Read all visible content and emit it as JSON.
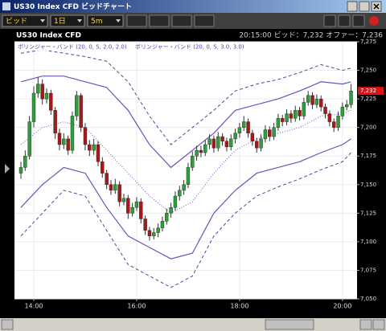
{
  "window": {
    "title": "US30 Index CFD ビッドチャート"
  },
  "toolbar": {
    "price_type": "ビッド",
    "period": "1日",
    "interval": "5m"
  },
  "chart_data": {
    "type": "candlestick",
    "title": "US30 Index CFD",
    "info": "20:15:00  ビッド：7,232  オファー：7,236",
    "legend": [
      "ボリンジャー・バンド (20, 0, S, 2.0, 2.0)",
      "ボリンジャー・バンド (20, 0, S, 3.0, 3.0)"
    ],
    "xlim": [
      -1.5,
      78.4
    ],
    "xticks": [
      {
        "value": 3,
        "label": "14:00"
      },
      {
        "value": 27,
        "label": "16:00"
      },
      {
        "value": 51,
        "label": "18:00"
      },
      {
        "value": 75,
        "label": "20:00"
      }
    ],
    "ylim": [
      7050,
      7275
    ],
    "yticks": [
      {
        "value": 7050,
        "label": "7,050"
      },
      {
        "value": 7075,
        "label": "7,075"
      },
      {
        "value": 7100,
        "label": "7,100"
      },
      {
        "value": 7125,
        "label": "7,125"
      },
      {
        "value": 7150,
        "label": "7,150"
      },
      {
        "value": 7175,
        "label": "7,175"
      },
      {
        "value": 7200,
        "label": "7,200"
      },
      {
        "value": 7225,
        "label": "7,225"
      },
      {
        "value": 7250,
        "label": "7,250"
      },
      {
        "value": 7275,
        "label": "7,275"
      }
    ],
    "grid": true,
    "up_color": "#2e9e3a",
    "down_color": "#a81818",
    "ohlc": [
      [
        7160,
        7170,
        7155,
        7165
      ],
      [
        7165,
        7180,
        7162,
        7175
      ],
      [
        7175,
        7210,
        7172,
        7205
      ],
      [
        7205,
        7236,
        7200,
        7230
      ],
      [
        7230,
        7244,
        7226,
        7238
      ],
      [
        7238,
        7242,
        7220,
        7225
      ],
      [
        7225,
        7234,
        7221,
        7230
      ],
      [
        7230,
        7233,
        7211,
        7215
      ],
      [
        7215,
        7218,
        7190,
        7195
      ],
      [
        7195,
        7199,
        7180,
        7185
      ],
      [
        7185,
        7195,
        7181,
        7190
      ],
      [
        7190,
        7193,
        7176,
        7180
      ],
      [
        7180,
        7214,
        7177,
        7210
      ],
      [
        7210,
        7232,
        7206,
        7228
      ],
      [
        7228,
        7230,
        7196,
        7200
      ],
      [
        7200,
        7204,
        7180,
        7185
      ],
      [
        7185,
        7189,
        7175,
        7180
      ],
      [
        7180,
        7190,
        7176,
        7185
      ],
      [
        7185,
        7188,
        7166,
        7170
      ],
      [
        7170,
        7174,
        7156,
        7160
      ],
      [
        7160,
        7163,
        7146,
        7150
      ],
      [
        7150,
        7154,
        7141,
        7145
      ],
      [
        7145,
        7155,
        7142,
        7150
      ],
      [
        7150,
        7153,
        7131,
        7135
      ],
      [
        7135,
        7142,
        7132,
        7138
      ],
      [
        7138,
        7141,
        7120,
        7125
      ],
      [
        7125,
        7134,
        7122,
        7130
      ],
      [
        7130,
        7139,
        7127,
        7135
      ],
      [
        7135,
        7138,
        7116,
        7120
      ],
      [
        7120,
        7123,
        7106,
        7110
      ],
      [
        7110,
        7113,
        7101,
        7105
      ],
      [
        7105,
        7112,
        7102,
        7108
      ],
      [
        7108,
        7116,
        7104,
        7112
      ],
      [
        7112,
        7122,
        7109,
        7118
      ],
      [
        7118,
        7129,
        7115,
        7125
      ],
      [
        7125,
        7134,
        7121,
        7130
      ],
      [
        7130,
        7144,
        7127,
        7140
      ],
      [
        7140,
        7149,
        7136,
        7145
      ],
      [
        7145,
        7154,
        7141,
        7150
      ],
      [
        7150,
        7169,
        7147,
        7165
      ],
      [
        7165,
        7179,
        7162,
        7175
      ],
      [
        7175,
        7184,
        7171,
        7180
      ],
      [
        7180,
        7184,
        7174,
        7178
      ],
      [
        7178,
        7189,
        7175,
        7185
      ],
      [
        7185,
        7194,
        7181,
        7190
      ],
      [
        7190,
        7193,
        7178,
        7182
      ],
      [
        7182,
        7196,
        7179,
        7192
      ],
      [
        7192,
        7195,
        7184,
        7188
      ],
      [
        7188,
        7191,
        7179,
        7183
      ],
      [
        7183,
        7194,
        7180,
        7190
      ],
      [
        7190,
        7199,
        7186,
        7195
      ],
      [
        7195,
        7204,
        7191,
        7200
      ],
      [
        7200,
        7210,
        7197,
        7205
      ],
      [
        7205,
        7208,
        7191,
        7195
      ],
      [
        7195,
        7198,
        7184,
        7188
      ],
      [
        7188,
        7191,
        7178,
        7182
      ],
      [
        7182,
        7194,
        7179,
        7190
      ],
      [
        7190,
        7202,
        7187,
        7198
      ],
      [
        7198,
        7201,
        7188,
        7192
      ],
      [
        7192,
        7204,
        7189,
        7200
      ],
      [
        7200,
        7212,
        7197,
        7208
      ],
      [
        7208,
        7211,
        7201,
        7205
      ],
      [
        7205,
        7216,
        7202,
        7212
      ],
      [
        7212,
        7215,
        7204,
        7208
      ],
      [
        7208,
        7219,
        7205,
        7215
      ],
      [
        7215,
        7218,
        7206,
        7210
      ],
      [
        7210,
        7226,
        7207,
        7222
      ],
      [
        7222,
        7232,
        7219,
        7228
      ],
      [
        7228,
        7231,
        7216,
        7220
      ],
      [
        7220,
        7229,
        7217,
        7225
      ],
      [
        7225,
        7228,
        7214,
        7218
      ],
      [
        7218,
        7221,
        7208,
        7212
      ],
      [
        7212,
        7215,
        7201,
        7205
      ],
      [
        7205,
        7208,
        7196,
        7200
      ],
      [
        7200,
        7214,
        7197,
        7210
      ],
      [
        7210,
        7222,
        7207,
        7218
      ],
      [
        7218,
        7224,
        7215,
        7220
      ],
      [
        7220,
        7238,
        7217,
        7232
      ]
    ],
    "band_x": [
      0,
      5,
      10,
      15,
      20,
      25,
      30,
      35,
      40,
      45,
      50,
      55,
      60,
      65,
      70,
      75,
      77
    ],
    "overlays": [
      {
        "color": "#6a5acd",
        "dash": "dot",
        "values": [
          7185,
          7200,
          7205,
          7200,
          7180,
          7160,
          7140,
          7125,
          7135,
          7160,
          7180,
          7190,
          7195,
          7200,
          7210,
          7212,
          7215
        ]
      },
      {
        "color": "#7050b8",
        "dash": "solid",
        "values": [
          7240,
          7245,
          7245,
          7240,
          7235,
          7215,
          7185,
          7165,
          7180,
          7195,
          7215,
          7220,
          7225,
          7232,
          7240,
          7238,
          7240
        ]
      },
      {
        "color": "#7050b8",
        "dash": "solid",
        "values": [
          7130,
          7150,
          7165,
          7160,
          7130,
          7105,
          7095,
          7085,
          7090,
          7125,
          7145,
          7160,
          7165,
          7170,
          7178,
          7185,
          7190
        ]
      },
      {
        "color": "#4a4a9a",
        "dash": "dash",
        "values": [
          7265,
          7268,
          7265,
          7262,
          7258,
          7240,
          7210,
          7185,
          7200,
          7215,
          7232,
          7238,
          7242,
          7248,
          7255,
          7250,
          7252
        ]
      },
      {
        "color": "#4a4a9a",
        "dash": "dash",
        "values": [
          7105,
          7125,
          7145,
          7140,
          7110,
          7080,
          7070,
          7060,
          7070,
          7105,
          7125,
          7140,
          7148,
          7155,
          7163,
          7170,
          7178
        ]
      }
    ],
    "last_price": {
      "value": 7232,
      "label": "7,232"
    }
  }
}
